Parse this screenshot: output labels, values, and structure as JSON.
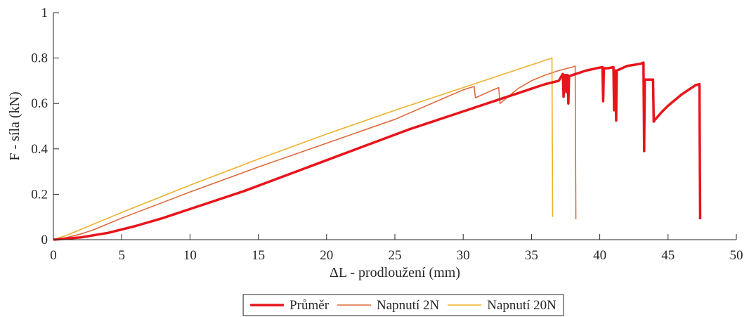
{
  "chart_data": {
    "type": "line",
    "title": "",
    "xlabel": "ΔL - prodloužení (mm)",
    "ylabel": "F - síla (kN)",
    "xlim": [
      0,
      50
    ],
    "ylim": [
      0,
      1
    ],
    "xticks": [
      0,
      5,
      10,
      15,
      20,
      25,
      30,
      35,
      40,
      45,
      50
    ],
    "yticks": [
      0,
      0.2,
      0.4,
      0.6,
      0.8,
      1
    ],
    "xtick_labels": [
      "0",
      "5",
      "10",
      "15",
      "20",
      "25",
      "30",
      "35",
      "40",
      "45",
      "50"
    ],
    "ytick_labels": [
      "0",
      "0.2",
      "0.4",
      "0.6",
      "0.8",
      "1"
    ],
    "grid": false,
    "legend_position": "bottom-center",
    "series": [
      {
        "name": "Průměr",
        "color": "#e8141b",
        "line_width": 3.5,
        "points": [
          [
            0,
            0
          ],
          [
            2,
            0.01
          ],
          [
            4,
            0.03
          ],
          [
            6,
            0.06
          ],
          [
            8,
            0.095
          ],
          [
            10,
            0.135
          ],
          [
            12,
            0.175
          ],
          [
            14,
            0.215
          ],
          [
            16,
            0.26
          ],
          [
            18,
            0.305
          ],
          [
            20,
            0.35
          ],
          [
            22,
            0.395
          ],
          [
            24,
            0.44
          ],
          [
            26,
            0.485
          ],
          [
            28,
            0.525
          ],
          [
            30,
            0.565
          ],
          [
            32,
            0.605
          ],
          [
            34,
            0.645
          ],
          [
            35,
            0.665
          ],
          [
            36,
            0.685
          ],
          [
            37,
            0.7
          ],
          [
            37.2,
            0.72
          ],
          [
            37.3,
            0.73
          ],
          [
            37.35,
            0.63
          ],
          [
            37.4,
            0.725
          ],
          [
            37.5,
            0.725
          ],
          [
            37.55,
            0.65
          ],
          [
            37.6,
            0.725
          ],
          [
            37.65,
            0.725
          ],
          [
            37.7,
            0.6
          ],
          [
            37.75,
            0.72
          ],
          [
            38,
            0.725
          ],
          [
            39,
            0.745
          ],
          [
            40,
            0.758
          ],
          [
            40.2,
            0.76
          ],
          [
            40.25,
            0.61
          ],
          [
            40.3,
            0.755
          ],
          [
            40.6,
            0.755
          ],
          [
            41,
            0.76
          ],
          [
            41.05,
            0.57
          ],
          [
            41.1,
            0.745
          ],
          [
            41.15,
            0.745
          ],
          [
            41.2,
            0.525
          ],
          [
            41.25,
            0.745
          ],
          [
            42,
            0.765
          ],
          [
            43,
            0.775
          ],
          [
            43.2,
            0.78
          ],
          [
            43.25,
            0.39
          ],
          [
            43.3,
            0.705
          ],
          [
            43.6,
            0.705
          ],
          [
            43.9,
            0.705
          ],
          [
            43.95,
            0.52
          ],
          [
            44,
            0.525
          ],
          [
            44.5,
            0.56
          ],
          [
            45,
            0.59
          ],
          [
            45.5,
            0.615
          ],
          [
            46,
            0.64
          ],
          [
            46.5,
            0.66
          ],
          [
            47,
            0.68
          ],
          [
            47.3,
            0.685
          ],
          [
            47.35,
            0.09
          ]
        ]
      },
      {
        "name": "Napnutí 2N",
        "color": "#de6a3c",
        "line_width": 1.6,
        "points": [
          [
            0,
            0
          ],
          [
            1,
            0.01
          ],
          [
            2,
            0.025
          ],
          [
            3,
            0.045
          ],
          [
            4,
            0.07
          ],
          [
            5,
            0.095
          ],
          [
            10,
            0.21
          ],
          [
            15,
            0.32
          ],
          [
            20,
            0.425
          ],
          [
            25,
            0.53
          ],
          [
            30,
            0.66
          ],
          [
            30.8,
            0.675
          ],
          [
            30.9,
            0.625
          ],
          [
            32,
            0.655
          ],
          [
            32.6,
            0.67
          ],
          [
            32.7,
            0.6
          ],
          [
            33,
            0.615
          ],
          [
            34,
            0.665
          ],
          [
            35,
            0.7
          ],
          [
            36,
            0.725
          ],
          [
            37,
            0.745
          ],
          [
            38,
            0.76
          ],
          [
            38.2,
            0.765
          ],
          [
            38.25,
            0.09
          ]
        ]
      },
      {
        "name": "Napnutí 20N",
        "color": "#ecb12c",
        "line_width": 1.6,
        "points": [
          [
            0,
            0
          ],
          [
            1,
            0.02
          ],
          [
            2,
            0.045
          ],
          [
            3,
            0.07
          ],
          [
            4,
            0.095
          ],
          [
            5,
            0.12
          ],
          [
            10,
            0.24
          ],
          [
            15,
            0.355
          ],
          [
            20,
            0.465
          ],
          [
            25,
            0.57
          ],
          [
            30,
            0.67
          ],
          [
            35,
            0.77
          ],
          [
            36.5,
            0.8
          ],
          [
            36.55,
            0.1
          ]
        ]
      }
    ]
  }
}
